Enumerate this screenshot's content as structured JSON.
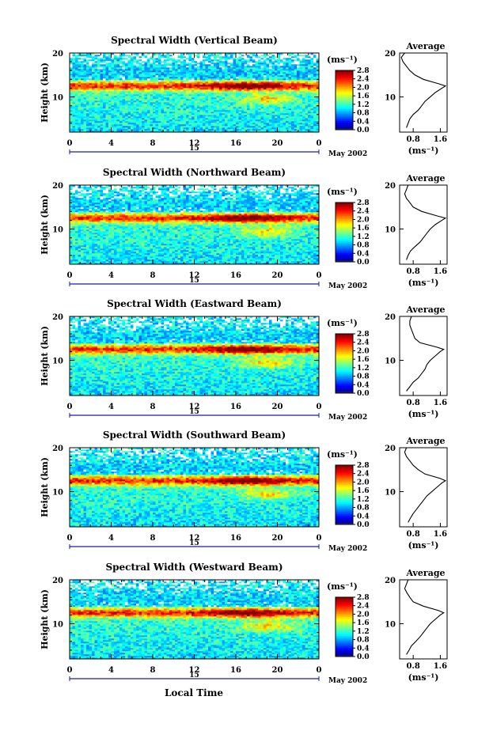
{
  "figure": {
    "xlabel": "Local Time",
    "ylabel": "Height (km)",
    "date_label": "May 2002",
    "day_label": "15",
    "colorbar_unit": "(ms⁻¹)",
    "profile_title": "Average",
    "profile_xlabel": "(ms⁻¹)"
  },
  "chart_data": [
    {
      "type": "heatmap",
      "title": "Spectral Width (Vertical Beam)",
      "xlabel": "",
      "ylabel": "Height (km)",
      "x_ticks": [
        "0",
        "4",
        "8",
        "12",
        "16",
        "20",
        "0"
      ],
      "y_ticks": [
        "20",
        "10"
      ],
      "xlim": [
        0,
        24
      ],
      "ylim": [
        2,
        20
      ],
      "colorbar": {
        "unit": "(ms⁻¹)",
        "ticks": [
          "2.8",
          "2.4",
          "2.0",
          "1.6",
          "1.2",
          "0.8",
          "0.4",
          "0.0"
        ],
        "range": [
          0,
          2.8
        ]
      },
      "profile": {
        "title": "Average",
        "xlabel": "(ms⁻¹)",
        "x_ticks": [
          "0.8",
          "1.6"
        ],
        "y_ticks": [
          "20",
          "10"
        ],
        "height": [
          3,
          4,
          5,
          6,
          7,
          8,
          9,
          10,
          11,
          12,
          12.5,
          13,
          14,
          15,
          16,
          17,
          18,
          19,
          20
        ],
        "value": [
          0.6,
          0.65,
          0.7,
          0.8,
          0.95,
          1.05,
          1.15,
          1.3,
          1.45,
          1.65,
          1.75,
          1.55,
          1.1,
          0.85,
          0.7,
          0.6,
          0.5,
          0.45,
          0.55
        ]
      }
    },
    {
      "type": "heatmap",
      "title": "Spectral Width (Northward Beam)",
      "xlabel": "",
      "ylabel": "Height (km)",
      "x_ticks": [
        "0",
        "4",
        "8",
        "12",
        "16",
        "20",
        "0"
      ],
      "y_ticks": [
        "20",
        "10"
      ],
      "xlim": [
        0,
        24
      ],
      "ylim": [
        2,
        20
      ],
      "colorbar": {
        "unit": "(ms⁻¹)",
        "ticks": [
          "2.8",
          "2.4",
          "2.0",
          "1.6",
          "1.2",
          "0.8",
          "0.4",
          "0.0"
        ],
        "range": [
          0,
          2.8
        ]
      },
      "profile": {
        "title": "Average",
        "xlabel": "(ms⁻¹)",
        "x_ticks": [
          "0.8",
          "1.6"
        ],
        "y_ticks": [
          "20",
          "10"
        ],
        "height": [
          3,
          4,
          5,
          6,
          7,
          8,
          9,
          10,
          11,
          12,
          12.5,
          13,
          14,
          15,
          16,
          17,
          18,
          19,
          20
        ],
        "value": [
          0.6,
          0.65,
          0.72,
          0.85,
          1.0,
          1.1,
          1.2,
          1.3,
          1.45,
          1.65,
          1.75,
          1.5,
          1.05,
          0.8,
          0.7,
          0.6,
          0.55,
          0.6,
          0.65
        ]
      }
    },
    {
      "type": "heatmap",
      "title": "Spectral Width (Eastward Beam)",
      "xlabel": "",
      "ylabel": "Height (km)",
      "x_ticks": [
        "0",
        "4",
        "8",
        "12",
        "16",
        "20",
        "0"
      ],
      "y_ticks": [
        "20",
        "10"
      ],
      "xlim": [
        0,
        24
      ],
      "ylim": [
        2,
        20
      ],
      "colorbar": {
        "unit": "(ms⁻¹)",
        "ticks": [
          "2.8",
          "2.4",
          "2.0",
          "1.6",
          "1.2",
          "0.8",
          "0.4",
          "0.0"
        ],
        "range": [
          0,
          2.8
        ]
      },
      "profile": {
        "title": "Average",
        "xlabel": "(ms⁻¹)",
        "x_ticks": [
          "0.8",
          "1.6"
        ],
        "y_ticks": [
          "20",
          "10"
        ],
        "height": [
          3,
          4,
          5,
          6,
          7,
          8,
          9,
          10,
          11,
          12,
          12.5,
          13,
          14,
          15,
          16,
          17,
          18,
          19,
          20
        ],
        "value": [
          0.6,
          0.7,
          0.8,
          0.95,
          1.05,
          1.15,
          1.2,
          1.3,
          1.45,
          1.6,
          1.7,
          1.5,
          1.0,
          0.85,
          0.8,
          0.75,
          0.7,
          0.7,
          0.75
        ]
      }
    },
    {
      "type": "heatmap",
      "title": "Spectral Width (Southward Beam)",
      "xlabel": "",
      "ylabel": "Height (km)",
      "x_ticks": [
        "0",
        "4",
        "8",
        "12",
        "16",
        "20",
        "0"
      ],
      "y_ticks": [
        "20",
        "10"
      ],
      "xlim": [
        0,
        24
      ],
      "ylim": [
        2,
        20
      ],
      "colorbar": {
        "unit": "(ms⁻¹)",
        "ticks": [
          "2.8",
          "2.4",
          "2.0",
          "1.6",
          "1.2",
          "0.8",
          "0.4",
          "0.0"
        ],
        "range": [
          0,
          2.8
        ]
      },
      "profile": {
        "title": "Average",
        "xlabel": "(ms⁻¹)",
        "x_ticks": [
          "0.8",
          "1.6"
        ],
        "y_ticks": [
          "20",
          "10"
        ],
        "height": [
          3,
          4,
          5,
          6,
          7,
          8,
          9,
          10,
          11,
          12,
          12.5,
          13,
          14,
          15,
          16,
          17,
          18,
          19,
          20
        ],
        "value": [
          0.65,
          0.72,
          0.8,
          0.9,
          1.0,
          1.1,
          1.2,
          1.35,
          1.5,
          1.65,
          1.75,
          1.6,
          1.15,
          0.95,
          0.8,
          0.7,
          0.6,
          0.55,
          0.6
        ]
      }
    },
    {
      "type": "heatmap",
      "title": "Spectral Width (Westward Beam)",
      "xlabel": "Local Time",
      "ylabel": "Height (km)",
      "x_ticks": [
        "0",
        "4",
        "8",
        "12",
        "16",
        "20",
        "0"
      ],
      "y_ticks": [
        "20",
        "10"
      ],
      "xlim": [
        0,
        24
      ],
      "ylim": [
        2,
        20
      ],
      "colorbar": {
        "unit": "(ms⁻¹)",
        "ticks": [
          "2.8",
          "2.4",
          "2.0",
          "1.6",
          "1.2",
          "0.8",
          "0.4",
          "0.0"
        ],
        "range": [
          0,
          2.8
        ]
      },
      "profile": {
        "title": "Average",
        "xlabel": "(ms⁻¹)",
        "x_ticks": [
          "0.8",
          "1.6"
        ],
        "y_ticks": [
          "20",
          "10"
        ],
        "height": [
          3,
          4,
          5,
          6,
          7,
          8,
          9,
          10,
          11,
          12,
          12.5,
          13,
          14,
          15,
          16,
          17,
          18,
          19,
          20
        ],
        "value": [
          0.6,
          0.68,
          0.75,
          0.88,
          1.0,
          1.1,
          1.2,
          1.3,
          1.45,
          1.6,
          1.7,
          1.55,
          1.1,
          0.8,
          0.7,
          0.62,
          0.55,
          0.6,
          0.65
        ]
      }
    }
  ]
}
